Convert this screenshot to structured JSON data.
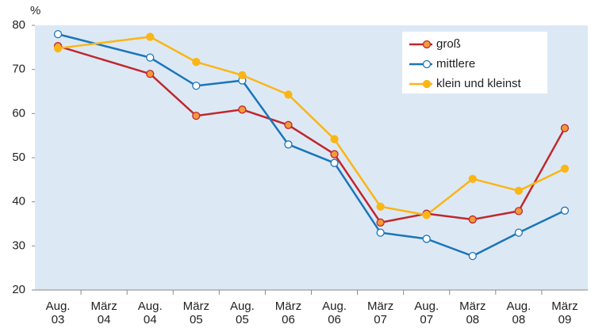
{
  "chart_data": {
    "type": "line",
    "y_unit": "%",
    "categories": [
      [
        "Aug.",
        "03"
      ],
      [
        "März",
        "04"
      ],
      [
        "Aug.",
        "04"
      ],
      [
        "März",
        "05"
      ],
      [
        "Aug.",
        "05"
      ],
      [
        "März",
        "06"
      ],
      [
        "Aug.",
        "06"
      ],
      [
        "März",
        "07"
      ],
      [
        "Aug.",
        "07"
      ],
      [
        "März",
        "08"
      ],
      [
        "Aug.",
        "08"
      ],
      [
        "März",
        "09"
      ]
    ],
    "series": [
      {
        "name": "groß",
        "color": "#c0272d",
        "marker_fill": "#f39a3c",
        "values": [
          75.3,
          null,
          69,
          59.5,
          60.9,
          57.4,
          50.8,
          35.3,
          37.3,
          36,
          37.9,
          56.7
        ]
      },
      {
        "name": "mittlere",
        "color": "#1b75bb",
        "marker_fill": "#ffffff",
        "values": [
          78,
          null,
          72.7,
          66.3,
          67.5,
          53,
          48.8,
          33,
          31.6,
          27.7,
          33,
          38
        ]
      },
      {
        "name": "klein und kleinst",
        "color": "#fbb515",
        "marker_fill": "#fbb515",
        "values": [
          74.8,
          null,
          77.4,
          71.7,
          68.7,
          64.3,
          54.2,
          38.9,
          37,
          45.2,
          42.5,
          47.5
        ]
      }
    ],
    "ylim": [
      20,
      80
    ],
    "yticks": [
      20,
      30,
      40,
      50,
      60,
      70,
      80
    ],
    "legend": "upper right"
  }
}
